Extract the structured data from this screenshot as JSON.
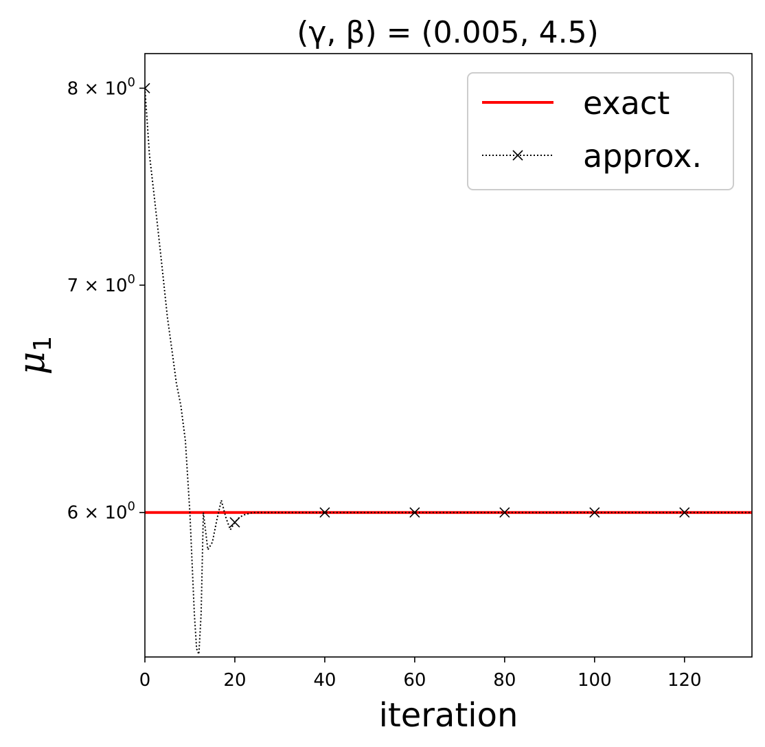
{
  "chart_data": {
    "type": "line",
    "title": "(γ, β) = (0.005, 4.5)",
    "xlabel": "iteration",
    "ylabel": "μ",
    "ylabel_subscript": "1",
    "xlim": [
      0,
      135
    ],
    "ylim": [
      5.44,
      8.19
    ],
    "yscale": "log",
    "xticks": [
      0,
      20,
      40,
      60,
      80,
      100,
      120
    ],
    "xtick_labels": [
      "0",
      "20",
      "40",
      "60",
      "80",
      "100",
      "120"
    ],
    "yticks": [
      {
        "value": 8,
        "mantissa": "8",
        "base": "10",
        "exponent": "0"
      },
      {
        "value": 7,
        "mantissa": "7",
        "base": "10",
        "exponent": "0"
      },
      {
        "value": 6,
        "mantissa": "6",
        "base": "10",
        "exponent": "0"
      }
    ],
    "grid": false,
    "legend_position": "top-right",
    "series": [
      {
        "name": "exact",
        "style": "solid",
        "color": "#ff0000",
        "x": [
          0,
          135
        ],
        "y": [
          6.0,
          6.0
        ]
      },
      {
        "name": "approx.",
        "style": "dotted",
        "marker": "x",
        "marker_every": 20,
        "color": "#000000",
        "x": [
          0,
          1,
          2,
          3,
          4,
          5,
          6,
          7,
          8,
          9,
          10,
          11,
          11.5,
          12,
          12.5,
          13,
          14,
          15,
          16,
          17,
          18,
          19,
          20,
          21,
          22,
          23,
          24,
          25,
          30,
          40,
          60,
          80,
          100,
          120,
          135
        ],
        "y": [
          8.0,
          7.65,
          7.45,
          7.25,
          7.05,
          6.85,
          6.7,
          6.55,
          6.45,
          6.3,
          6.0,
          5.6,
          5.47,
          5.45,
          5.6,
          6.0,
          5.85,
          5.88,
          5.97,
          6.05,
          5.98,
          5.93,
          5.96,
          5.98,
          5.99,
          5.995,
          6.0,
          6.0,
          6.0,
          6.0,
          6.0,
          6.0,
          6.0,
          6.0,
          6.0
        ]
      }
    ]
  },
  "colors": {
    "exact": "#ff0000",
    "approx": "#000000",
    "axes": "#000000",
    "legend_border": "#cccccc"
  }
}
